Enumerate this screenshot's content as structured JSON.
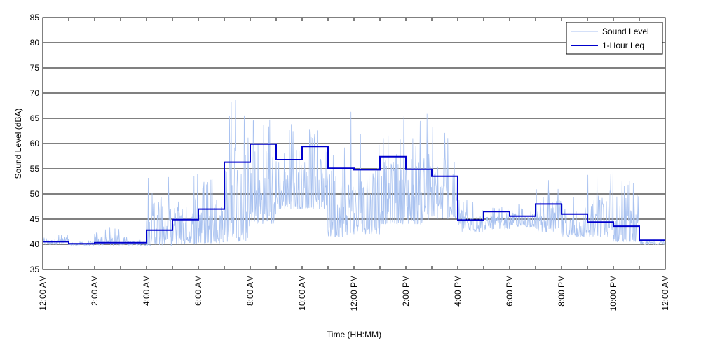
{
  "chart_data": {
    "type": "line",
    "title": "",
    "xlabel": "Time (HH:MM)",
    "ylabel": "Sound Level (dBA)",
    "xlim": [
      0,
      24
    ],
    "ylim": [
      35,
      85
    ],
    "grid": "horizontal",
    "legend_position": "top-right",
    "x_tick_values": [
      0,
      2,
      4,
      6,
      8,
      10,
      12,
      14,
      16,
      18,
      20,
      22,
      24
    ],
    "x_tick_labels": [
      "12:00 AM",
      "2:00 AM",
      "4:00 AM",
      "6:00 AM",
      "8:00 AM",
      "10:00 AM",
      "12:00 PM",
      "2:00 PM",
      "4:00 PM",
      "6:00 PM",
      "8:00 PM",
      "10:00 PM",
      "12:00 AM"
    ],
    "y_ticks": [
      35,
      40,
      45,
      50,
      55,
      60,
      65,
      70,
      75,
      80,
      85
    ],
    "series": [
      {
        "name": "Sound Level",
        "color": "#a9c2f0",
        "style": "thin-line",
        "hourly_envelope": [
          {
            "hour": 0,
            "min": 40.0,
            "max": 42.0
          },
          {
            "hour": 1,
            "min": 39.8,
            "max": 40.8
          },
          {
            "hour": 2,
            "min": 39.8,
            "max": 43.5
          },
          {
            "hour": 3,
            "min": 39.8,
            "max": 41.5
          },
          {
            "hour": 4,
            "min": 39.8,
            "max": 54.0
          },
          {
            "hour": 5,
            "min": 40.0,
            "max": 54.5
          },
          {
            "hour": 6,
            "min": 40.2,
            "max": 53.0
          },
          {
            "hour": 7,
            "min": 40.5,
            "max": 68.8
          },
          {
            "hour": 8,
            "min": 44.0,
            "max": 66.5
          },
          {
            "hour": 9,
            "min": 47.0,
            "max": 64.0
          },
          {
            "hour": 10,
            "min": 47.0,
            "max": 63.0
          },
          {
            "hour": 11,
            "min": 41.5,
            "max": 67.5
          },
          {
            "hour": 12,
            "min": 42.0,
            "max": 62.0
          },
          {
            "hour": 13,
            "min": 44.0,
            "max": 67.5
          },
          {
            "hour": 14,
            "min": 44.0,
            "max": 68.0
          },
          {
            "hour": 15,
            "min": 45.0,
            "max": 63.5
          },
          {
            "hour": 16,
            "min": 42.5,
            "max": 49.0
          },
          {
            "hour": 17,
            "min": 43.0,
            "max": 47.5
          },
          {
            "hour": 18,
            "min": 43.5,
            "max": 48.5
          },
          {
            "hour": 19,
            "min": 42.5,
            "max": 54.0
          },
          {
            "hour": 20,
            "min": 41.5,
            "max": 50.5
          },
          {
            "hour": 21,
            "min": 41.5,
            "max": 55.5
          },
          {
            "hour": 22,
            "min": 40.5,
            "max": 53.0
          },
          {
            "hour": 23,
            "min": 40.0,
            "max": 41.0
          }
        ]
      },
      {
        "name": "1-Hour Leq",
        "color": "#0000cc",
        "style": "step",
        "x": [
          0,
          1,
          2,
          3,
          4,
          5,
          6,
          7,
          8,
          9,
          10,
          11,
          12,
          13,
          14,
          15,
          16,
          17,
          18,
          19,
          20,
          21,
          22,
          23
        ],
        "values": [
          40.5,
          40.1,
          40.3,
          40.3,
          42.8,
          44.9,
          47.0,
          56.3,
          59.9,
          56.8,
          59.4,
          55.1,
          54.8,
          57.4,
          54.9,
          53.5,
          44.8,
          46.5,
          45.6,
          48.0,
          46.0,
          44.4,
          43.6,
          40.8
        ]
      }
    ]
  }
}
